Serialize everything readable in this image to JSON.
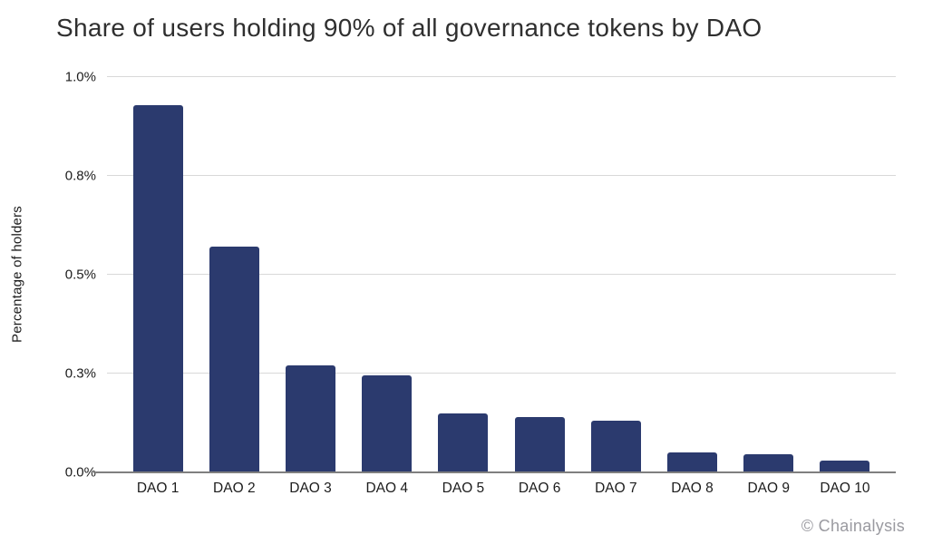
{
  "chart_data": {
    "type": "bar",
    "title": "Share of users holding 90% of all governance tokens by DAO",
    "ylabel": "Percentage of holders",
    "xlabel": "",
    "categories": [
      "DAO 1",
      "DAO 2",
      "DAO 3",
      "DAO 4",
      "DAO 5",
      "DAO 6",
      "DAO 7",
      "DAO 8",
      "DAO 9",
      "DAO 10"
    ],
    "values": [
      0.93,
      0.57,
      0.27,
      0.245,
      0.15,
      0.14,
      0.13,
      0.05,
      0.046,
      0.03
    ],
    "unit": "%",
    "ylim": [
      0,
      1.0
    ],
    "ytick_values": [
      0,
      0.25,
      0.5,
      0.75,
      1.0
    ],
    "ytick_labels": [
      "0.0%",
      "0.3%",
      "0.5%",
      "0.8%",
      "1.0%"
    ],
    "grid": true,
    "legend": false,
    "bar_color": "#2b3a6e",
    "gridline_color": "#d8d8d8",
    "axis_line_color": "#7f7f7f",
    "attribution": "© Chainalysis"
  }
}
